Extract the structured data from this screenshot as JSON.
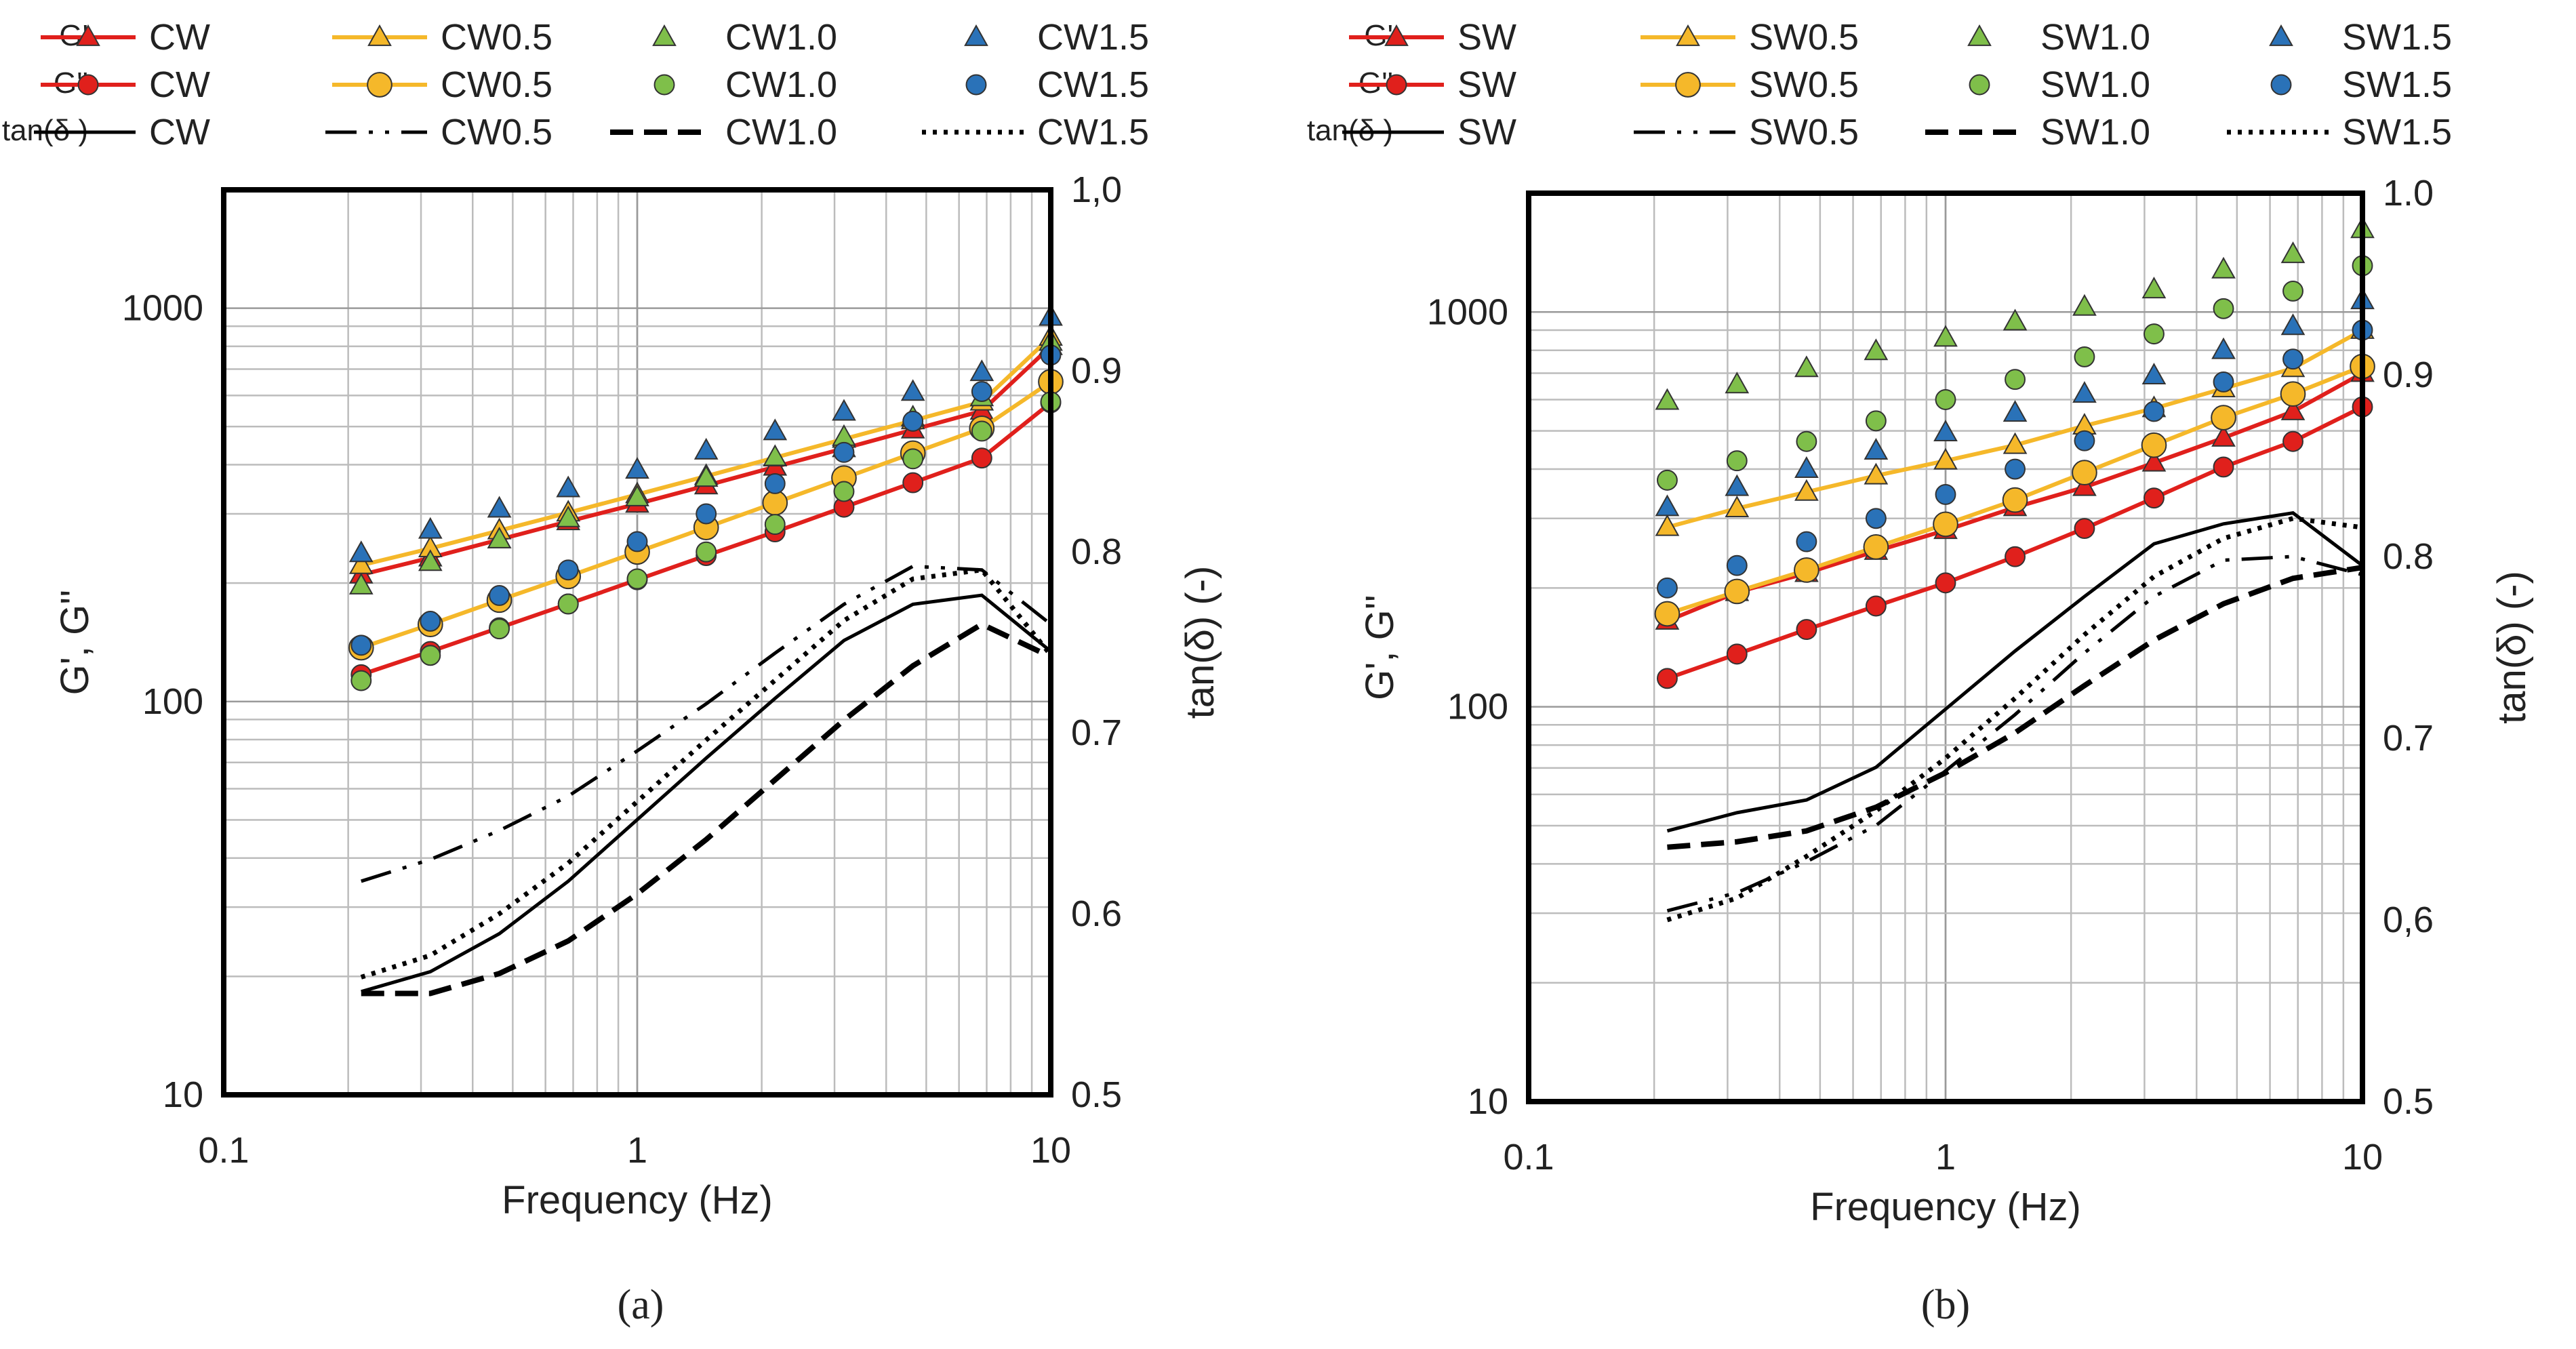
{
  "chart_data": [
    {
      "type": "scatter",
      "panel_label": "(a)",
      "xlabel": "Frequency (Hz)",
      "ylabel": "G', G''",
      "y2label": "tan(δ) (-)",
      "xscale": "log",
      "yscale": "log",
      "xlim": [
        0.1,
        10
      ],
      "ylim": [
        10,
        2000
      ],
      "y2lim": [
        0.5,
        1.0
      ],
      "x_ticks": [
        "0.1",
        "1",
        "10"
      ],
      "y_ticks": [
        "10",
        "100",
        "1000"
      ],
      "y2_ticks": [
        "0.5",
        "0.6",
        "0.7",
        "0.8",
        "0.9",
        "1,0"
      ],
      "grid": true,
      "legend_position": "top",
      "legend_rows": [
        "G'",
        "G''",
        "tan(δ )"
      ],
      "legend_cols": [
        "CW",
        "CW0.5",
        "CW1.0",
        "CW1.5"
      ],
      "x": [
        0.215,
        0.316,
        0.464,
        0.681,
        1.0,
        1.468,
        2.154,
        3.162,
        4.642,
        6.813,
        10.0
      ],
      "series": [
        {
          "name": "CW",
          "quantity": "G'",
          "marker": "triangle",
          "line": true,
          "color": "#e0201c",
          "values": [
            210,
            232,
            258,
            287,
            318,
            354,
            395,
            440,
            491,
            548,
            800
          ]
        },
        {
          "name": "CW0.5",
          "quantity": "G'",
          "marker": "triangle",
          "line": true,
          "color": "#f5b82a",
          "values": [
            222,
            245,
            272,
            302,
            336,
            374,
            417,
            465,
            518,
            578,
            845
          ]
        },
        {
          "name": "CW1.0",
          "quantity": "G'",
          "marker": "triangle",
          "line": false,
          "color": "#7fbf4a",
          "values": [
            197,
            226,
            258,
            292,
            330,
            370,
            418,
            470,
            527,
            593,
            820
          ]
        },
        {
          "name": "CW1.5",
          "quantity": "G'",
          "marker": "triangle",
          "line": false,
          "color": "#2a72b8",
          "values": [
            238,
            273,
            309,
            348,
            388,
            434,
            486,
            545,
            612,
            687,
            950
          ]
        },
        {
          "name": "CW",
          "quantity": "G''",
          "marker": "circle",
          "line": true,
          "color": "#e0201c",
          "values": [
            117,
            134,
            154,
            177,
            204,
            235,
            270,
            312,
            360,
            416,
            575
          ]
        },
        {
          "name": "CW0.5",
          "quantity": "G''",
          "marker": "circle",
          "line": true,
          "color": "#f5b82a",
          "values": [
            137,
            157,
            181,
            208,
            240,
            277,
            320,
            370,
            428,
            495,
            650
          ]
        },
        {
          "name": "CW1.0",
          "quantity": "G''",
          "marker": "circle",
          "line": false,
          "color": "#7fbf4a",
          "values": [
            113,
            131,
            153,
            177,
            205,
            240,
            282,
            342,
            414,
            487,
            578
          ]
        },
        {
          "name": "CW1.5",
          "quantity": "G''",
          "marker": "circle",
          "line": false,
          "color": "#2a72b8",
          "values": [
            139,
            160,
            186,
            216,
            255,
            300,
            358,
            430,
            516,
            614,
            760
          ]
        },
        {
          "name": "CW",
          "quantity": "tan(δ)",
          "axis": "y2",
          "dash": "solid",
          "values": [
            0.557,
            0.568,
            0.589,
            0.618,
            0.652,
            0.686,
            0.719,
            0.751,
            0.771,
            0.776,
            0.745
          ]
        },
        {
          "name": "CW0.5",
          "quantity": "tan(δ)",
          "axis": "y2",
          "dash": "dashdotdot",
          "values": [
            0.618,
            0.63,
            0.646,
            0.665,
            0.69,
            0.716,
            0.744,
            0.771,
            0.792,
            0.79,
            0.76
          ]
        },
        {
          "name": "CW1.0",
          "quantity": "tan(δ)",
          "axis": "y2",
          "dash": "dash",
          "values": [
            0.556,
            0.556,
            0.567,
            0.585,
            0.611,
            0.641,
            0.674,
            0.707,
            0.737,
            0.76,
            0.742
          ]
        },
        {
          "name": "CW1.5",
          "quantity": "tan(δ)",
          "axis": "y2",
          "dash": "dot",
          "values": [
            0.565,
            0.577,
            0.6,
            0.628,
            0.662,
            0.696,
            0.729,
            0.762,
            0.785,
            0.79,
            0.743
          ]
        }
      ]
    },
    {
      "type": "scatter",
      "panel_label": "(b)",
      "xlabel": "Frequency (Hz)",
      "ylabel": "G', G''",
      "y2label": "tan(δ) (-)",
      "xscale": "log",
      "yscale": "log",
      "xlim": [
        0.1,
        10
      ],
      "ylim": [
        10,
        2000
      ],
      "y2lim": [
        0.5,
        1.0
      ],
      "x_ticks": [
        "0.1",
        "1",
        "10"
      ],
      "y_ticks": [
        "10",
        "100",
        "1000"
      ],
      "y2_ticks": [
        "0.5",
        "0,6",
        "0.7",
        "0.8",
        "0.9",
        "1.0"
      ],
      "grid": true,
      "legend_position": "top",
      "legend_rows": [
        "G'",
        "G''",
        "tan(δ )"
      ],
      "legend_cols": [
        "SW",
        "SW0.5",
        "SW1.0",
        "SW1.5"
      ],
      "x": [
        0.215,
        0.316,
        0.464,
        0.681,
        1.0,
        1.468,
        2.154,
        3.162,
        4.642,
        6.813,
        10.0
      ],
      "series": [
        {
          "name": "SW",
          "quantity": "G'",
          "marker": "triangle",
          "line": true,
          "color": "#e0201c",
          "values": [
            165,
            195,
            218,
            248,
            280,
            320,
            360,
            415,
            480,
            560,
            700
          ]
        },
        {
          "name": "SW0.5",
          "quantity": "G'",
          "marker": "triangle",
          "line": true,
          "color": "#f5b82a",
          "values": [
            285,
            318,
            350,
            385,
            420,
            460,
            515,
            570,
            640,
            720,
            900
          ]
        },
        {
          "name": "SW1.0",
          "quantity": "G'",
          "marker": "triangle",
          "line": false,
          "color": "#7fbf4a",
          "values": [
            595,
            655,
            720,
            795,
            860,
            945,
            1030,
            1140,
            1280,
            1400,
            1620
          ]
        },
        {
          "name": "SW1.5",
          "quantity": "G'",
          "marker": "triangle",
          "line": false,
          "color": "#2a72b8",
          "values": [
            320,
            360,
            400,
            445,
            495,
            555,
            620,
            690,
            800,
            920,
            1070
          ]
        },
        {
          "name": "SW",
          "quantity": "G''",
          "marker": "circle",
          "line": true,
          "color": "#e0201c",
          "values": [
            118,
            136,
            157,
            180,
            206,
            240,
            283,
            338,
            405,
            470,
            575
          ]
        },
        {
          "name": "SW0.5",
          "quantity": "G''",
          "marker": "circle",
          "line": true,
          "color": "#f5b82a",
          "values": [
            172,
            196,
            222,
            254,
            290,
            334,
            392,
            460,
            540,
            620,
            728
          ]
        },
        {
          "name": "SW1.0",
          "quantity": "G''",
          "marker": "circle",
          "line": false,
          "color": "#7fbf4a",
          "values": [
            375,
            420,
            470,
            530,
            600,
            675,
            770,
            880,
            1020,
            1130,
            1310
          ]
        },
        {
          "name": "SW1.5",
          "quantity": "G''",
          "marker": "circle",
          "line": false,
          "color": "#2a72b8",
          "values": [
            200,
            228,
            262,
            300,
            345,
            400,
            472,
            560,
            665,
            760,
            900
          ]
        },
        {
          "name": "SW",
          "quantity": "tan(δ)",
          "axis": "y2",
          "dash": "solid",
          "values": [
            0.649,
            0.659,
            0.666,
            0.684,
            0.716,
            0.748,
            0.778,
            0.807,
            0.818,
            0.824,
            0.795
          ]
        },
        {
          "name": "SW0.5",
          "quantity": "tan(δ)",
          "axis": "y2",
          "dash": "dashdotdot",
          "values": [
            0.605,
            0.615,
            0.632,
            0.652,
            0.682,
            0.713,
            0.747,
            0.778,
            0.798,
            0.8,
            0.79
          ]
        },
        {
          "name": "SW1.0",
          "quantity": "tan(δ)",
          "axis": "y2",
          "dash": "dash",
          "values": [
            0.64,
            0.643,
            0.649,
            0.662,
            0.681,
            0.703,
            0.729,
            0.754,
            0.774,
            0.788,
            0.794
          ]
        },
        {
          "name": "SW1.5",
          "quantity": "tan(δ)",
          "axis": "y2",
          "dash": "dot",
          "values": [
            0.6,
            0.612,
            0.635,
            0.66,
            0.689,
            0.722,
            0.757,
            0.789,
            0.81,
            0.821,
            0.816
          ]
        }
      ]
    }
  ]
}
